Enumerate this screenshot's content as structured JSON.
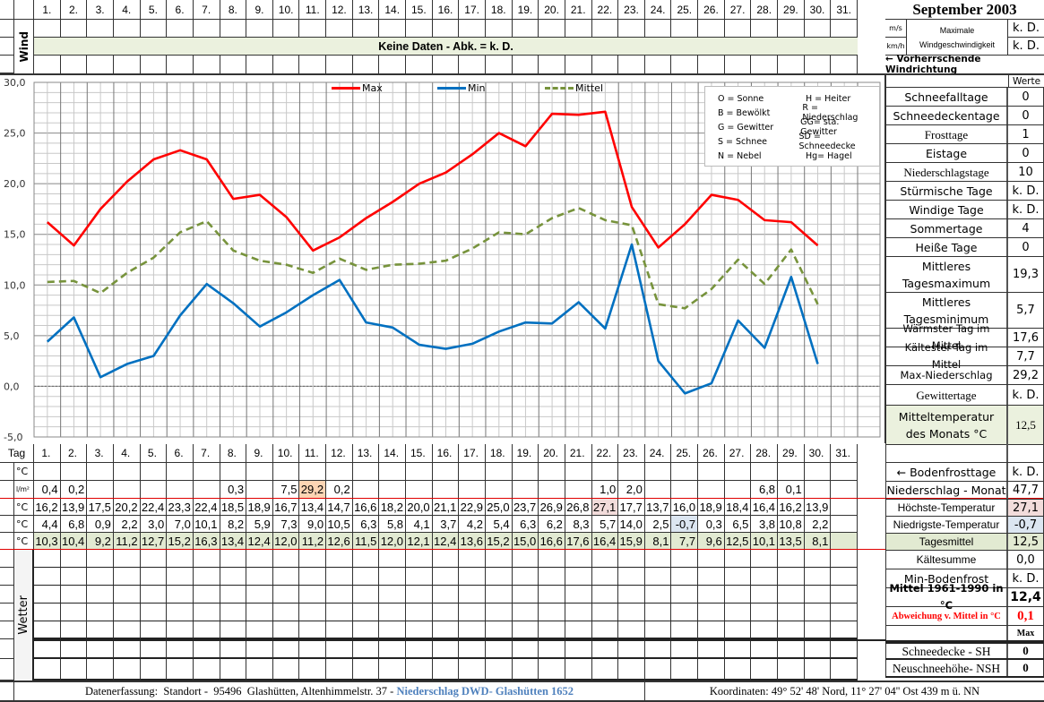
{
  "header": {
    "title": "September 2003",
    "days": [
      "1.",
      "2.",
      "3.",
      "4.",
      "5.",
      "6.",
      "7.",
      "8.",
      "9.",
      "10.",
      "11.",
      "12.",
      "13.",
      "14.",
      "15.",
      "16.",
      "17.",
      "18.",
      "19.",
      "20.",
      "21.",
      "22.",
      "23.",
      "24.",
      "25.",
      "26.",
      "27.",
      "28.",
      "29.",
      "30.",
      "31."
    ]
  },
  "wind": {
    "label": "Wind",
    "no_data_text": "Keine Daten - Abk. = k. D.",
    "unit_ms": "m/s",
    "unit_kmh": "km/h",
    "max_label": "Maximale Windgeschwindigkeit",
    "max_ms": "k. D.",
    "max_kmh": "k. D.",
    "direction_label": "← Vorherrschende Windrichtung",
    "werte_label": "Werte"
  },
  "legend_box": {
    "items": [
      [
        "O = Sonne",
        "H = Heiter"
      ],
      [
        "B = Bewölkt",
        "R = Niederschlag"
      ],
      [
        "G = Gewitter",
        "GG= sta. Gewitter"
      ],
      [
        "S = Schnee",
        "SD = Schneedecke"
      ],
      [
        "N = Nebel",
        "Hg= Hagel"
      ]
    ]
  },
  "stats": [
    {
      "label": "Schneefalltage",
      "value": "0"
    },
    {
      "label": "Schneedeckentage",
      "value": "0"
    },
    {
      "label": "Frosttage",
      "value": "1"
    },
    {
      "label": "Eistage",
      "value": "0"
    },
    {
      "label": "Niederschlagstage",
      "value": "10"
    },
    {
      "label": "Stürmische Tage",
      "value": "k. D."
    },
    {
      "label": "Windige Tage",
      "value": "k. D."
    },
    {
      "label": "Sommertage",
      "value": "4"
    },
    {
      "label": "Heiße Tage",
      "value": "0"
    },
    {
      "label": "Mittleres Tagesmaximum",
      "value": "19,3"
    },
    {
      "label": "Mittleres Tagesminimum",
      "value": "5,7"
    },
    {
      "label": "Wärmster Tag im Mittel",
      "value": "17,6"
    },
    {
      "label": "Kältester Tag im Mittel",
      "value": "7,7"
    },
    {
      "label": "Max-Niederschlag",
      "value": "29,2"
    },
    {
      "label": "Gewittertage",
      "value": "k. D."
    },
    {
      "label": "Mitteltemperatur des Monats °C",
      "value": "12,5"
    }
  ],
  "table": {
    "tag_label": "Tag",
    "units": {
      "boden": "°C",
      "rain": "l/m²",
      "max": "°C",
      "min": "°C",
      "mean": "°C"
    },
    "rain": [
      "0,4",
      "0,2",
      "",
      "",
      "",
      "",
      "",
      "0,3",
      "",
      "7,5",
      "29,2",
      "0,2",
      "",
      "",
      "",
      "",
      "",
      "",
      "",
      "",
      "",
      "1,0",
      "2,0",
      "",
      "",
      "",
      "",
      "6,8",
      "0,1",
      "",
      ""
    ],
    "max": [
      "16,2",
      "13,9",
      "17,5",
      "20,2",
      "22,4",
      "23,3",
      "22,4",
      "18,5",
      "18,9",
      "16,7",
      "13,4",
      "14,7",
      "16,6",
      "18,2",
      "20,0",
      "21,1",
      "22,9",
      "25,0",
      "23,7",
      "26,9",
      "26,8",
      "27,1",
      "17,7",
      "13,7",
      "16,0",
      "18,9",
      "18,4",
      "16,4",
      "16,2",
      "13,9",
      ""
    ],
    "min": [
      "4,4",
      "6,8",
      "0,9",
      "2,2",
      "3,0",
      "7,0",
      "10,1",
      "8,2",
      "5,9",
      "7,3",
      "9,0",
      "10,5",
      "6,3",
      "5,8",
      "4,1",
      "3,7",
      "4,2",
      "5,4",
      "6,3",
      "6,2",
      "8,3",
      "5,7",
      "14,0",
      "2,5",
      "-0,7",
      "0,3",
      "6,5",
      "3,8",
      "10,8",
      "2,2",
      ""
    ],
    "mean": [
      "10,3",
      "10,4",
      "9,2",
      "11,2",
      "12,7",
      "15,2",
      "16,3",
      "13,4",
      "12,4",
      "12,0",
      "11,2",
      "12,6",
      "11,5",
      "12,0",
      "12,1",
      "12,4",
      "13,6",
      "15,2",
      "15,0",
      "16,6",
      "17,6",
      "16,4",
      "15,9",
      "8,1",
      "7,7",
      "9,6",
      "12,5",
      "10,1",
      "13,5",
      "8,1",
      ""
    ]
  },
  "summary": [
    {
      "label": "← Bodenfrosttage",
      "value": "k. D."
    },
    {
      "label": "Niederschlag - Monat",
      "value": "47,7"
    },
    {
      "label": "Höchste-Temperatur",
      "value": "27,1"
    },
    {
      "label": "Niedrigste-Temperatur",
      "value": "-0,7"
    },
    {
      "label": "Tagesmittel",
      "value": "12,5"
    },
    {
      "label": "Kältesumme",
      "value": "0,0"
    },
    {
      "label": "Min-Bodenfrost",
      "value": "k. D."
    },
    {
      "label": "Mittel 1961-1990 in °C",
      "value": "12,4"
    },
    {
      "label": "Abweichung v. Mittel in °C",
      "value": "0,1"
    },
    {
      "label": "",
      "value": "Max"
    },
    {
      "label": "Schneedecke -   SH",
      "value": "0"
    },
    {
      "label": "Neuschneehöhe- NSH",
      "value": "0"
    }
  ],
  "wetter_label": "Wetter",
  "footer": {
    "left": "Datenerfassung:  Standort -  95496  Glashütten, Altenhimmelstr. 37 - ",
    "left_highlight": "Niederschlag DWD- Glashütten 1652",
    "right": "Koordinaten:  49° 52' 48' Nord,   11° 27' 04'' Ost   439 m ü. NN"
  },
  "colors": {
    "max": "#ff0000",
    "min": "#0070c0",
    "mean": "#77933c",
    "green_fill": "#e2ead2",
    "hot": "#f2dcdb",
    "cold": "#dce6f1",
    "rain_max": "#fcd5b4"
  },
  "chart_data": {
    "type": "line",
    "title": "September 2003",
    "xlabel": "Tag",
    "ylabel": "°C",
    "ylim": [
      -5,
      30
    ],
    "yticks": [
      "-5,0",
      "0,0",
      "5,0",
      "10,0",
      "15,0",
      "20,0",
      "25,0",
      "30,0"
    ],
    "categories": [
      1,
      2,
      3,
      4,
      5,
      6,
      7,
      8,
      9,
      10,
      11,
      12,
      13,
      14,
      15,
      16,
      17,
      18,
      19,
      20,
      21,
      22,
      23,
      24,
      25,
      26,
      27,
      28,
      29,
      30
    ],
    "series": [
      {
        "name": "Max",
        "color": "#ff0000",
        "values": [
          16.2,
          13.9,
          17.5,
          20.2,
          22.4,
          23.3,
          22.4,
          18.5,
          18.9,
          16.7,
          13.4,
          14.7,
          16.6,
          18.2,
          20.0,
          21.1,
          22.9,
          25.0,
          23.7,
          26.9,
          26.8,
          27.1,
          17.7,
          13.7,
          16.0,
          18.9,
          18.4,
          16.4,
          16.2,
          13.9
        ]
      },
      {
        "name": "Min",
        "color": "#0070c0",
        "values": [
          4.4,
          6.8,
          0.9,
          2.2,
          3.0,
          7.0,
          10.1,
          8.2,
          5.9,
          7.3,
          9.0,
          10.5,
          6.3,
          5.8,
          4.1,
          3.7,
          4.2,
          5.4,
          6.3,
          6.2,
          8.3,
          5.7,
          14.0,
          2.5,
          -0.7,
          0.3,
          6.5,
          3.8,
          10.8,
          2.2
        ]
      },
      {
        "name": "Mittel",
        "color": "#77933c",
        "dashed": true,
        "values": [
          10.3,
          10.4,
          9.2,
          11.2,
          12.7,
          15.2,
          16.3,
          13.4,
          12.4,
          12.0,
          11.2,
          12.6,
          11.5,
          12.0,
          12.1,
          12.4,
          13.6,
          15.2,
          15.0,
          16.6,
          17.6,
          16.4,
          15.9,
          8.1,
          7.7,
          9.6,
          12.5,
          10.1,
          13.5,
          8.1
        ]
      }
    ],
    "grid": true,
    "legend_position": "top"
  }
}
